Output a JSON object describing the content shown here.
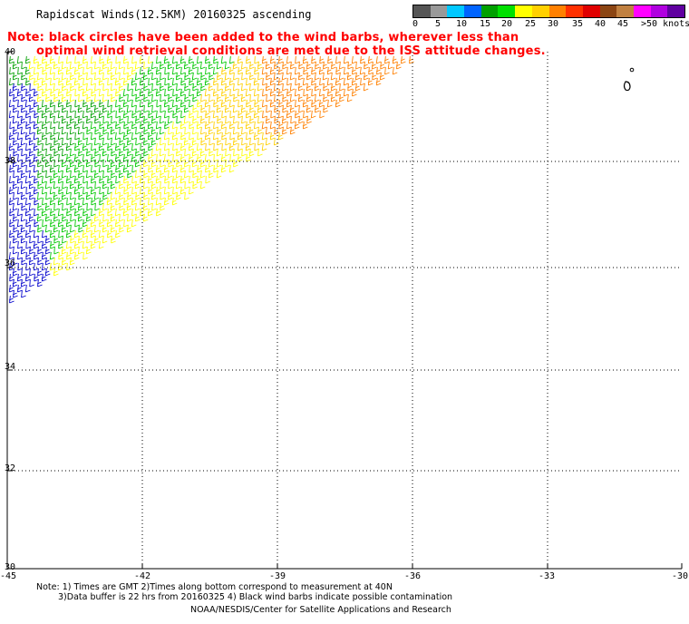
{
  "title": "Rapidscat Winds(12.5KM) 20160325 ascending",
  "note_line1": "Note: black circles have been added to the wind barbs, wherever less than",
  "note_line2": "optimal wind retrieval conditions are met due to the ISS attitude changes.",
  "colorbar": {
    "colors": [
      "#555555",
      "#999999",
      "#00c8ff",
      "#0064ff",
      "#00a000",
      "#00e000",
      "#ffff00",
      "#ffd000",
      "#ff8000",
      "#ff3000",
      "#e00000",
      "#8b4513",
      "#c08040",
      "#ff00ff",
      "#b000e0",
      "#6000a0"
    ],
    "labels": [
      "0",
      "5",
      "10",
      "15",
      "20",
      "25",
      "30",
      "35",
      "40",
      "45",
      ">50 knots"
    ]
  },
  "axes": {
    "lon_ticks": [
      "-45",
      "-42",
      "-39",
      "-36",
      "-33",
      "-30"
    ],
    "lat_ticks": [
      "40",
      "38",
      "36",
      "34",
      "32",
      "30"
    ]
  },
  "footer": {
    "line1": "Note: 1) Times are GMT 2)Times along bottom correspond to measurement at 40N",
    "line2": "3)Data buffer is 22 hrs from 20160325 4) Black wind barbs indicate possible contamination",
    "line3": "NOAA/NESDIS/Center for Satellite Applications and Research"
  }
}
